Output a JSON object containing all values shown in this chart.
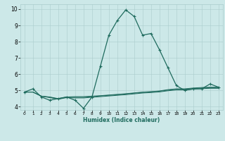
{
  "title": "",
  "xlabel": "Humidex (Indice chaleur)",
  "x_values": [
    0,
    1,
    2,
    3,
    4,
    5,
    6,
    7,
    8,
    9,
    10,
    11,
    12,
    13,
    14,
    15,
    16,
    17,
    18,
    19,
    20,
    21,
    22,
    23
  ],
  "line1": [
    4.9,
    5.1,
    4.6,
    4.4,
    4.5,
    4.6,
    4.4,
    3.9,
    4.6,
    6.5,
    8.4,
    9.3,
    9.95,
    9.55,
    8.4,
    8.5,
    7.5,
    6.4,
    5.3,
    5.0,
    5.1,
    5.1,
    5.4,
    5.2
  ],
  "line2": [
    4.9,
    4.9,
    4.65,
    4.6,
    4.5,
    4.6,
    4.62,
    4.62,
    4.65,
    4.68,
    4.72,
    4.76,
    4.8,
    4.85,
    4.9,
    4.93,
    4.97,
    5.05,
    5.1,
    5.1,
    5.15,
    5.18,
    5.2,
    5.2
  ],
  "line3": [
    4.9,
    4.9,
    4.65,
    4.58,
    4.48,
    4.58,
    4.58,
    4.58,
    4.62,
    4.66,
    4.7,
    4.74,
    4.78,
    4.83,
    4.88,
    4.91,
    4.95,
    5.02,
    5.07,
    5.07,
    5.12,
    5.15,
    5.17,
    5.17
  ],
  "line4": [
    4.9,
    4.9,
    4.65,
    4.56,
    4.46,
    4.56,
    4.54,
    4.54,
    4.58,
    4.62,
    4.66,
    4.7,
    4.74,
    4.79,
    4.84,
    4.87,
    4.91,
    4.98,
    5.03,
    5.03,
    5.08,
    5.11,
    5.13,
    5.13
  ],
  "line_color": "#1f6b5e",
  "bg_color": "#cce8e8",
  "grid_color": "#aacccc",
  "ylim": [
    3.8,
    10.3
  ],
  "xlim": [
    -0.5,
    23.5
  ],
  "yticks": [
    4,
    5,
    6,
    7,
    8,
    9,
    10
  ],
  "xticks": [
    0,
    1,
    2,
    3,
    4,
    5,
    6,
    7,
    8,
    9,
    10,
    11,
    12,
    13,
    14,
    15,
    16,
    17,
    18,
    19,
    20,
    21,
    22,
    23
  ]
}
